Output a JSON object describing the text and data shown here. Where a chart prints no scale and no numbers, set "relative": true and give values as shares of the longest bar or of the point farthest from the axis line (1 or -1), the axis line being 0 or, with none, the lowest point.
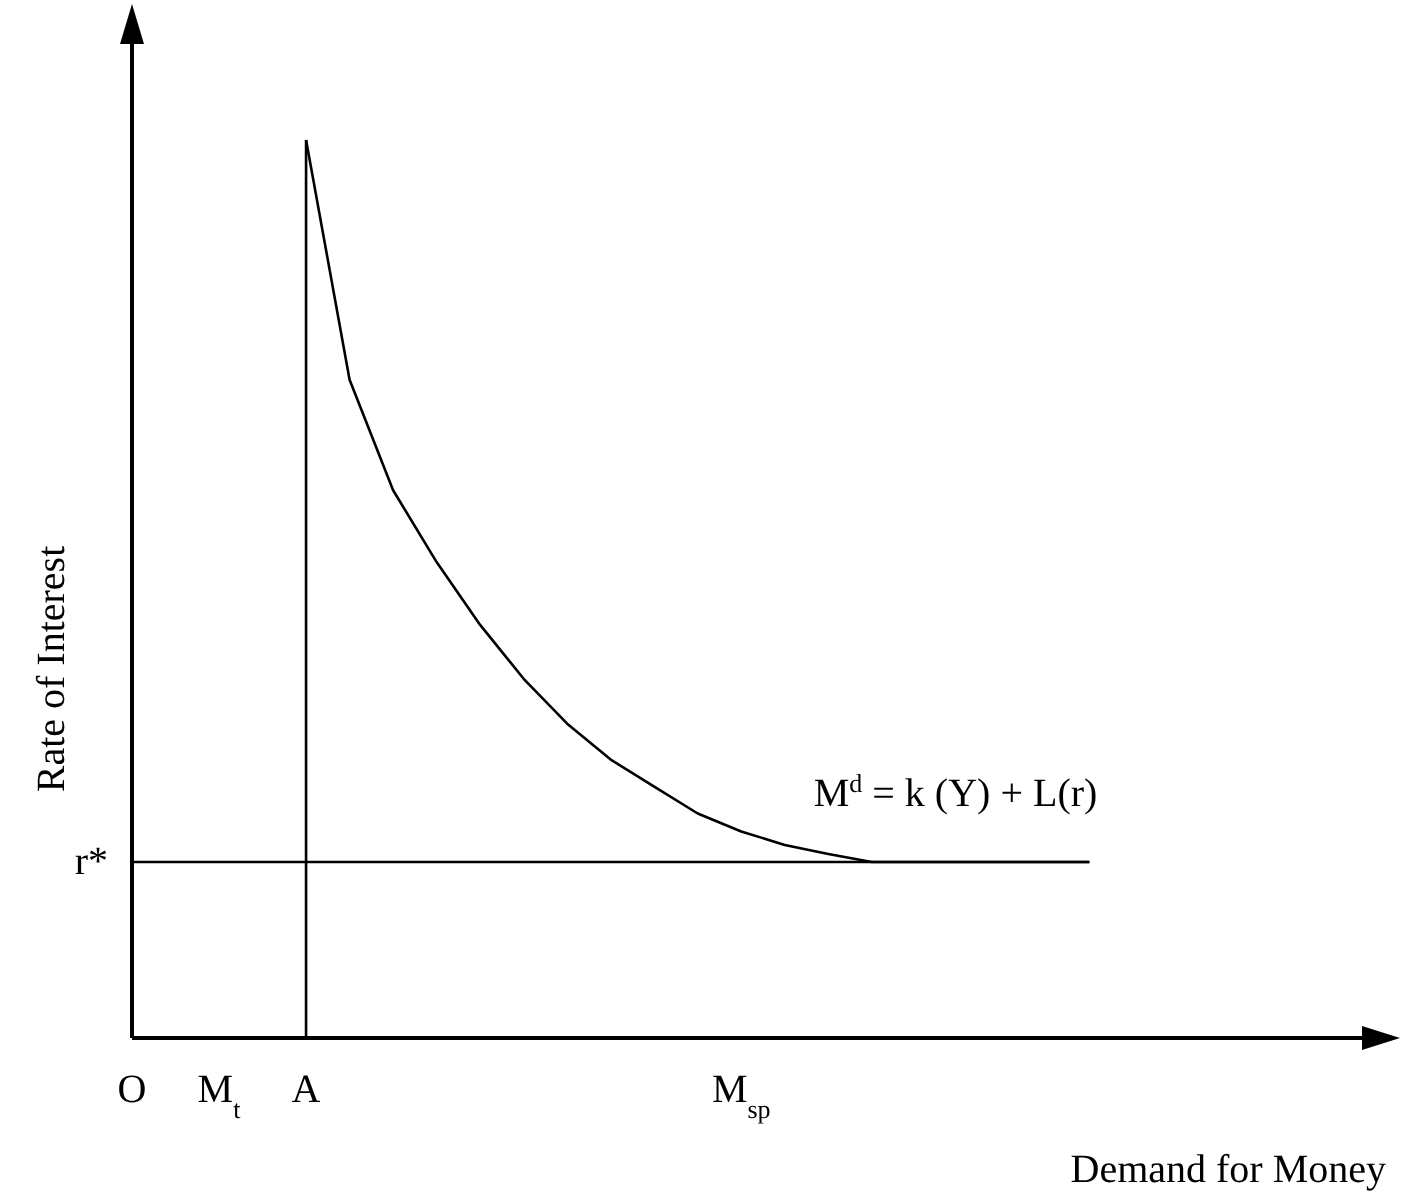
{
  "chart_data": {
    "type": "line",
    "relative": true,
    "xlabel": "Demand for Money",
    "ylabel": "Rate of Interest",
    "categories": [
      "O",
      null,
      "M$_{t}$",
      null,
      "A",
      null,
      null,
      null,
      null,
      null,
      null,
      null,
      null,
      null,
      "M$_{sp}$",
      null,
      null,
      null,
      null,
      null,
      null,
      null,
      null,
      null,
      null,
      null,
      null,
      null,
      null,
      null
    ],
    "series": [
      {
        "name": "M$^{d}$ = k (Y) + L(r)",
        "color": "#000000",
        "values": [
          null,
          null,
          null,
          null,
          1,
          0.733,
          0.61,
          0.53,
          0.46,
          0.4,
          0.35,
          0.31,
          0.28,
          0.25,
          0.23,
          0.215,
          0.205,
          0.196,
          0.196,
          0.196,
          0.196,
          0.196,
          0.196,
          null,
          null,
          null,
          null,
          null,
          null,
          null
        ]
      }
    ],
    "ref_lines": [
      {
        "axis": "y",
        "value": 0.196,
        "label": "r*",
        "color": "#000000"
      },
      {
        "axis": "x",
        "value": "A",
        "color": "#000000"
      }
    ],
    "marker": "none",
    "line_style": "solid"
  }
}
